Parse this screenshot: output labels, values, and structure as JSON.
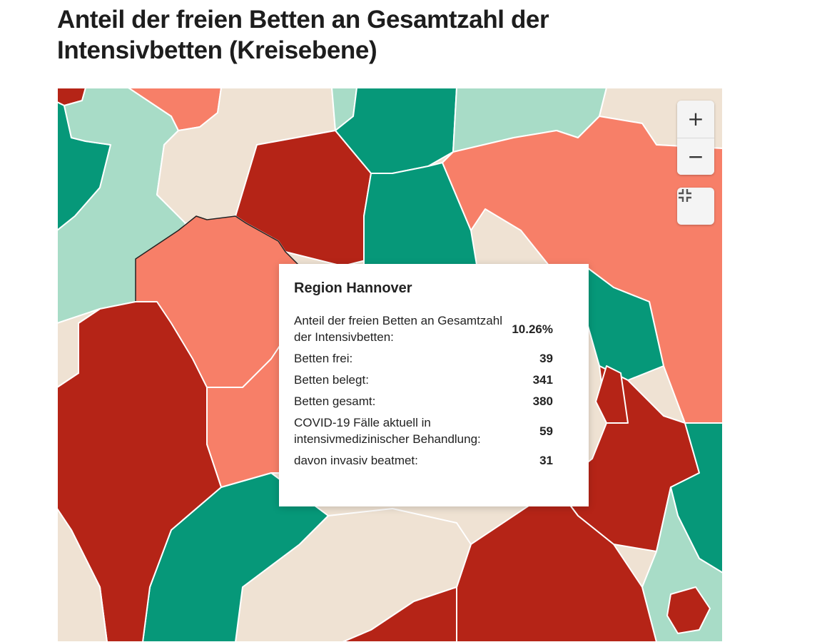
{
  "title": "Anteil der freien Betten an Gesamtzahl der Intensivbetten (Kreisebene)",
  "colors": {
    "dark_red": "#b52417",
    "salmon": "#f77f68",
    "beige": "#efe2d3",
    "light_green": "#a8dcc7",
    "green": "#069879",
    "border": "#ffffff",
    "highlight_border": "#222222"
  },
  "controls": {
    "zoom_in": "+",
    "zoom_out": "−",
    "fullscreen_icon": "fullscreen-exit-icon"
  },
  "tooltip": {
    "region": "Region Hannover",
    "rows": [
      {
        "label": "Anteil der freien Betten an Gesamtzahl der Intensivbetten:",
        "value": "10.26%"
      },
      {
        "label": "Betten frei:",
        "value": "39"
      },
      {
        "label": "Betten belegt:",
        "value": "341"
      },
      {
        "label": "Betten gesamt:",
        "value": "380"
      },
      {
        "label": "COVID-19 Fälle aktuell in intensivmedizinischer Behandlung:",
        "value": "59"
      },
      {
        "label": "davon invasiv beatmet:",
        "value": "31"
      }
    ]
  }
}
